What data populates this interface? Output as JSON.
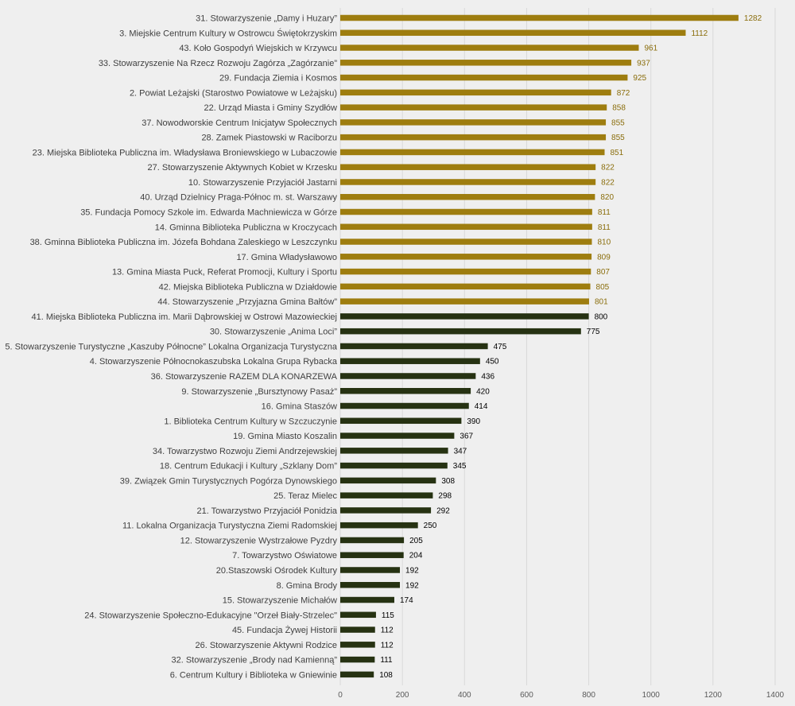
{
  "chart_data": {
    "type": "bar",
    "orientation": "horizontal",
    "title": "",
    "xlabel": "",
    "ylabel": "",
    "xlim": [
      0,
      1400
    ],
    "x_ticks": [
      0,
      200,
      400,
      600,
      800,
      1000,
      1200,
      1400
    ],
    "grid": true,
    "legend": "none",
    "colors": {
      "highlight": "#9e7d0f",
      "base": "#263212",
      "highlight_text": "#8a6d0b",
      "base_text": "#000000"
    },
    "categories": [
      "31. Stowarzyszenie „Damy i Huzary”",
      "3. Miejskie Centrum Kultury w Ostrowcu Świętokrzyskim",
      "43. Koło Gospodyń Wiejskich w Krzywcu",
      "33. Stowarzyszenie Na Rzecz Rozwoju Zagórza „Zagórzanie”",
      "29. Fundacja Ziemia i Kosmos",
      "2. Powiat Leżajski (Starostwo Powiatowe w Leżajsku)",
      "22. Urząd Miasta i Gminy Szydłów",
      "37. Nowodworskie Centrum Inicjatyw Społecznych",
      "28. Zamek Piastowski w Raciborzu",
      "23. Miejska Biblioteka Publiczna im. Władysława Broniewskiego w Lubaczowie",
      "27. Stowarzyszenie Aktywnych Kobiet w Krzesku",
      "10. Stowarzyszenie Przyjaciół Jastarni",
      "40. Urząd Dzielnicy Praga-Północ m. st. Warszawy",
      "35. Fundacja Pomocy Szkole im. Edwarda Machniewicza w Górze",
      "14. Gminna Biblioteka Publiczna w Kroczycach",
      "38. Gminna Biblioteka Publiczna im. Józefa Bohdana Zaleskiego w Leszczynku",
      "17. Gmina Władysławowo",
      "13. Gmina Miasta Puck, Referat Promocji, Kultury i Sportu",
      "42. Miejska Biblioteka Publiczna w Działdowie",
      "44. Stowarzyszenie „Przyjazna Gmina Bałtów”",
      "41. Miejska Biblioteka Publiczna im. Marii Dąbrowskiej w Ostrowi Mazowieckiej",
      "30. Stowarzyszenie „Anima Loci”",
      "5. Stowarzyszenie Turystyczne „Kaszuby Północne” Lokalna Organizacja Turystyczna",
      "4. Stowarzyszenie Północnokaszubska Lokalna Grupa Rybacka",
      "36. Stowarzyszenie RAZEM DLA KONARZEWA",
      "9. Stowarzyszenie „Bursztynowy Pasaż”",
      "16. Gmina Staszów",
      "1. Biblioteka Centrum Kultury w Szczuczynie",
      "19. Gmina Miasto Koszalin",
      "34. Towarzystwo Rozwoju Ziemi Andrzejewskiej",
      "18. Centrum Edukacji i Kultury „Szklany Dom”",
      "39. Związek Gmin Turystycznych Pogórza Dynowskiego",
      "25. Teraz Mielec",
      "21. Towarzystwo Przyjaciół Ponidzia",
      "11. Lokalna Organizacja Turystyczna Ziemi Radomskiej",
      "12. Stowarzyszenie Wystrzałowe Pyzdry",
      "7. Towarzystwo Oświatowe",
      "20.Staszowski Ośrodek Kultury",
      "8. Gmina Brody",
      "15. Stowarzyszenie Michałów",
      "24. Stowarzyszenie Społeczno-Edukacyjne \"Orzeł Biały-Strzelec\"",
      "45. Fundacja Żywej Historii",
      "26. Stowarzyszenie Aktywni Rodzice",
      "32. Stowarzyszenie „Brody nad Kamienną”",
      "6. Centrum Kultury i Biblioteka w Gniewinie"
    ],
    "values": [
      1282,
      1112,
      961,
      937,
      925,
      872,
      858,
      855,
      855,
      851,
      822,
      822,
      820,
      811,
      811,
      810,
      809,
      807,
      805,
      801,
      800,
      775,
      475,
      450,
      436,
      420,
      414,
      390,
      367,
      347,
      345,
      308,
      298,
      292,
      250,
      205,
      204,
      192,
      192,
      174,
      115,
      112,
      112,
      111,
      108
    ],
    "highlight_count": 20
  }
}
